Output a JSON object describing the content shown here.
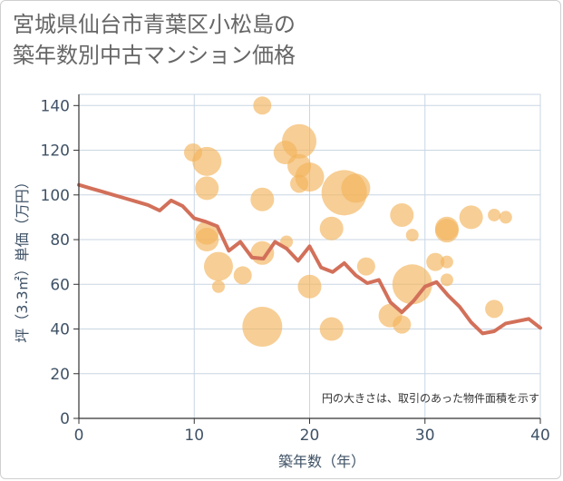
{
  "title": "宮城県仙台市青葉区小松島の\n築年数別中古マンション価格",
  "chart_data": {
    "type": "scatter+line",
    "title": "宮城県仙台市青葉区小松島の 築年数別中古マンション価格",
    "xlabel": "築年数（年）",
    "ylabel": "坪（3.3㎡）単価（万円）",
    "xlim": [
      0,
      40
    ],
    "ylim": [
      0,
      145
    ],
    "xticks": [
      0,
      10,
      20,
      30,
      40
    ],
    "yticks": [
      0,
      20,
      40,
      60,
      80,
      100,
      120,
      140
    ],
    "grid": true,
    "annotation": "円の大きさは、取引のあった物件面積を示す",
    "colors": {
      "bubble": "#f2b45c",
      "line": "#d2705a",
      "grid": "#c9d6e3",
      "axis_text": "#3f5266"
    },
    "scatter": [
      {
        "x": 9.9,
        "y": 119,
        "size": 2
      },
      {
        "x": 11.1,
        "y": 115,
        "size": 4
      },
      {
        "x": 11.1,
        "y": 103,
        "size": 3
      },
      {
        "x": 11.1,
        "y": 83,
        "size": 3
      },
      {
        "x": 11.1,
        "y": 80,
        "size": 3
      },
      {
        "x": 12.1,
        "y": 68,
        "size": 4
      },
      {
        "x": 12.1,
        "y": 59,
        "size": 1
      },
      {
        "x": 14.2,
        "y": 64,
        "size": 2
      },
      {
        "x": 15.9,
        "y": 140,
        "size": 2
      },
      {
        "x": 15.9,
        "y": 98,
        "size": 3
      },
      {
        "x": 15.9,
        "y": 74,
        "size": 3
      },
      {
        "x": 15.9,
        "y": 41,
        "size": 6
      },
      {
        "x": 17.9,
        "y": 119,
        "size": 3
      },
      {
        "x": 18.0,
        "y": 79,
        "size": 1
      },
      {
        "x": 19.1,
        "y": 124,
        "size": 5
      },
      {
        "x": 19.1,
        "y": 113,
        "size": 3
      },
      {
        "x": 19.1,
        "y": 105,
        "size": 2
      },
      {
        "x": 20.0,
        "y": 108,
        "size": 4
      },
      {
        "x": 20.0,
        "y": 59,
        "size": 3
      },
      {
        "x": 21.9,
        "y": 85,
        "size": 3
      },
      {
        "x": 21.9,
        "y": 40,
        "size": 3
      },
      {
        "x": 23.0,
        "y": 101,
        "size": 7
      },
      {
        "x": 24.0,
        "y": 103,
        "size": 4
      },
      {
        "x": 24.9,
        "y": 68,
        "size": 2
      },
      {
        "x": 27.0,
        "y": 46,
        "size": 3
      },
      {
        "x": 28.0,
        "y": 91,
        "size": 3
      },
      {
        "x": 28.0,
        "y": 42,
        "size": 2
      },
      {
        "x": 28.9,
        "y": 82,
        "size": 1
      },
      {
        "x": 28.9,
        "y": 60,
        "size": 6
      },
      {
        "x": 30.9,
        "y": 70,
        "size": 2
      },
      {
        "x": 31.9,
        "y": 85,
        "size": 3
      },
      {
        "x": 31.9,
        "y": 84,
        "size": 3
      },
      {
        "x": 31.9,
        "y": 70,
        "size": 1
      },
      {
        "x": 31.9,
        "y": 62,
        "size": 1
      },
      {
        "x": 34.0,
        "y": 90,
        "size": 3
      },
      {
        "x": 36.0,
        "y": 91,
        "size": 1
      },
      {
        "x": 36.0,
        "y": 49,
        "size": 2
      },
      {
        "x": 37.0,
        "y": 90,
        "size": 1
      }
    ],
    "line": {
      "x": [
        0,
        1,
        2,
        3,
        4,
        5,
        6,
        7,
        8,
        9,
        10,
        11,
        12,
        13,
        14,
        15,
        16,
        17,
        18,
        19,
        20,
        21,
        22,
        23,
        24,
        25,
        26,
        27,
        28,
        29,
        30,
        31,
        32,
        33,
        34,
        35,
        36,
        37,
        38,
        39,
        40
      ],
      "y": [
        104.5,
        103,
        101.5,
        100,
        98.5,
        97,
        95.5,
        93,
        97.5,
        95,
        89.5,
        88,
        86,
        75,
        79,
        72,
        71.5,
        79,
        76,
        70.5,
        77,
        67.5,
        65.5,
        69.5,
        64,
        60.5,
        62,
        52,
        47.5,
        52.5,
        59,
        61,
        55,
        50,
        43,
        38,
        39,
        42.5,
        43.5,
        44.5,
        40.5
      ]
    }
  }
}
